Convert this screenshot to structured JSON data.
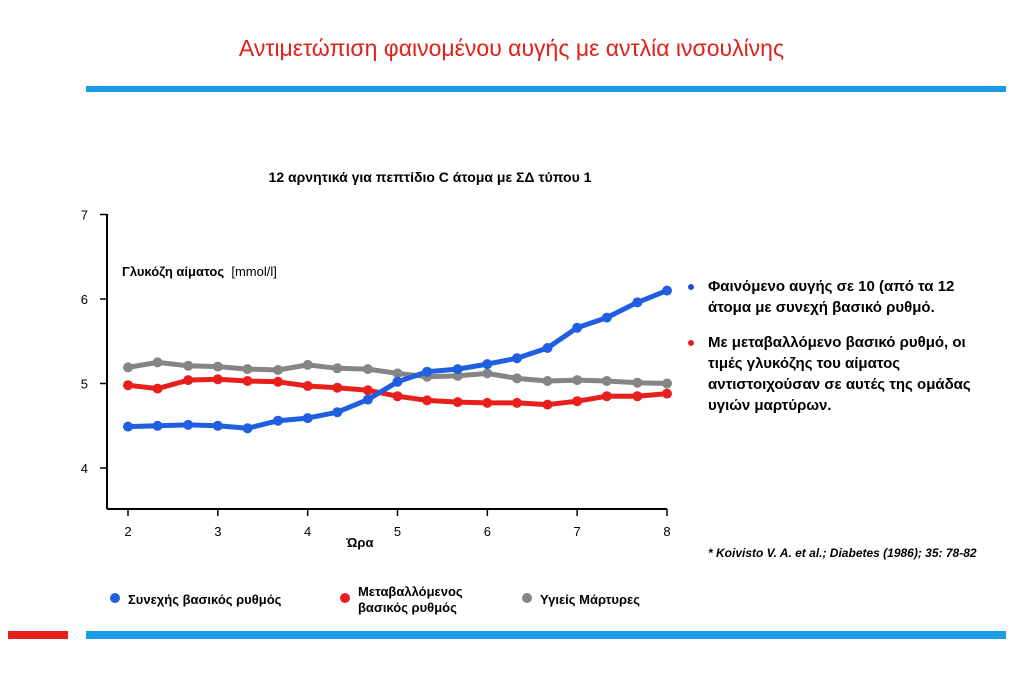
{
  "slide": {
    "title": "Αντιμετώπιση φαινομένου αυγής με αντλία ινσουλίνης"
  },
  "notes": {
    "items": [
      {
        "text": "Φαινόμενο αυγής σε 10 (από τα 12 άτομα με συνεχή βασικό ρυθμό.",
        "bullet_color": "#1f4fd8"
      },
      {
        "text": "Με μεταβαλλόμενο βασικό ρυθμό, οι τιμές γλυκόζης του αίματος αντιστοιχούσαν σε αυτές της ομάδας υγιών μαρτύρων.",
        "bullet_color": "#e8201b"
      }
    ]
  },
  "citation": "* Koivisto V. A. et al.; Diabetes (1986); 35: 78-82",
  "legend": {
    "items": [
      {
        "label": "Συνεχής βασικός ρυθμός",
        "color": "#1f5fe0"
      },
      {
        "label": "Μεταβαλλόμενος βασικός ρυθμός",
        "color": "#e8201b"
      },
      {
        "label": "Υγιείς Μάρτυρες",
        "color": "#858585"
      }
    ]
  },
  "chart_data": {
    "type": "line",
    "title": "12 αρνητικά για πεπτίδιο C άτομα με ΣΔ τύπου 1",
    "ylabel_bold": "Γλυκόζη αίματος",
    "ylabel_unit": "[mmol/l]",
    "xlabel": "Ώρα",
    "xlim": [
      2,
      8
    ],
    "ylim": [
      4,
      7
    ],
    "x_ticks": [
      2,
      3,
      4,
      5,
      6,
      7,
      8
    ],
    "y_ticks": [
      4,
      5,
      6,
      7
    ],
    "grid": false,
    "legend_position": "bottom",
    "x": [
      2.0,
      2.33,
      2.67,
      3.0,
      3.33,
      3.67,
      4.0,
      4.33,
      4.67,
      5.0,
      5.33,
      5.67,
      6.0,
      6.33,
      6.67,
      7.0,
      7.33,
      7.67,
      8.0
    ],
    "series": [
      {
        "name": "Συνεχής βασικός ρυθμός",
        "color": "#1f5fe0",
        "values": [
          4.49,
          4.5,
          4.51,
          4.5,
          4.47,
          4.56,
          4.59,
          4.66,
          4.81,
          5.02,
          5.14,
          5.17,
          5.23,
          5.3,
          5.42,
          5.66,
          5.78,
          5.96,
          6.1
        ]
      },
      {
        "name": "Μεταβαλλόμενος βασικός ρυθμός",
        "color": "#e8201b",
        "values": [
          4.98,
          4.94,
          5.04,
          5.05,
          5.03,
          5.02,
          4.97,
          4.95,
          4.92,
          4.85,
          4.8,
          4.78,
          4.77,
          4.77,
          4.75,
          4.79,
          4.85,
          4.85,
          4.88
        ]
      },
      {
        "name": "Υγιείς Μάρτυρες",
        "color": "#858585",
        "values": [
          5.19,
          5.25,
          5.21,
          5.2,
          5.17,
          5.16,
          5.22,
          5.18,
          5.17,
          5.12,
          5.08,
          5.09,
          5.12,
          5.06,
          5.03,
          5.04,
          5.03,
          5.01,
          5.0
        ]
      }
    ]
  }
}
